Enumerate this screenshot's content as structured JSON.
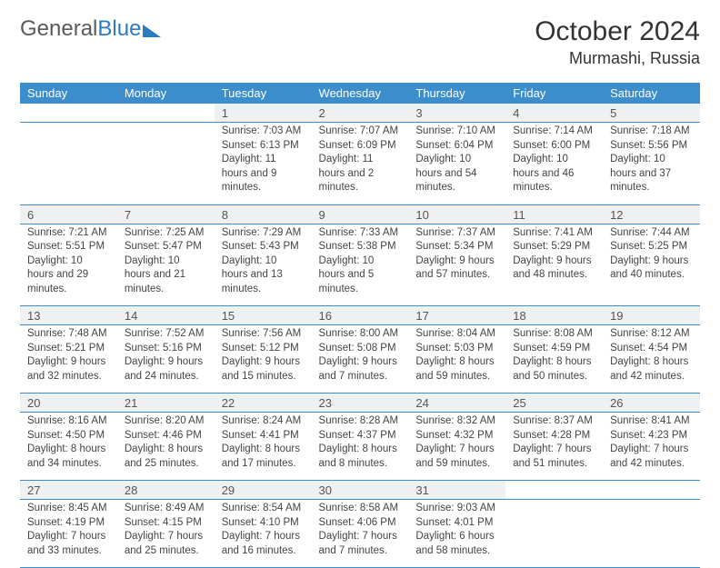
{
  "logo": {
    "word1": "General",
    "word2": "Blue"
  },
  "title": "October 2024",
  "location": "Murmashi, Russia",
  "colors": {
    "header_bg": "#3c8dcc",
    "header_text": "#ffffff",
    "daynum_bg": "#eef0f1",
    "border": "#3c8dcc",
    "body_text": "#444444",
    "logo_gray": "#5a5a5a",
    "logo_blue": "#2c7abf"
  },
  "day_headers": [
    "Sunday",
    "Monday",
    "Tuesday",
    "Wednesday",
    "Thursday",
    "Friday",
    "Saturday"
  ],
  "weeks": [
    {
      "nums": [
        "",
        "",
        "1",
        "2",
        "3",
        "4",
        "5"
      ],
      "cells": [
        "",
        "",
        "Sunrise: 7:03 AM\nSunset: 6:13 PM\nDaylight: 11 hours and 9 minutes.",
        "Sunrise: 7:07 AM\nSunset: 6:09 PM\nDaylight: 11 hours and 2 minutes.",
        "Sunrise: 7:10 AM\nSunset: 6:04 PM\nDaylight: 10 hours and 54 minutes.",
        "Sunrise: 7:14 AM\nSunset: 6:00 PM\nDaylight: 10 hours and 46 minutes.",
        "Sunrise: 7:18 AM\nSunset: 5:56 PM\nDaylight: 10 hours and 37 minutes."
      ]
    },
    {
      "nums": [
        "6",
        "7",
        "8",
        "9",
        "10",
        "11",
        "12"
      ],
      "cells": [
        "Sunrise: 7:21 AM\nSunset: 5:51 PM\nDaylight: 10 hours and 29 minutes.",
        "Sunrise: 7:25 AM\nSunset: 5:47 PM\nDaylight: 10 hours and 21 minutes.",
        "Sunrise: 7:29 AM\nSunset: 5:43 PM\nDaylight: 10 hours and 13 minutes.",
        "Sunrise: 7:33 AM\nSunset: 5:38 PM\nDaylight: 10 hours and 5 minutes.",
        "Sunrise: 7:37 AM\nSunset: 5:34 PM\nDaylight: 9 hours and 57 minutes.",
        "Sunrise: 7:41 AM\nSunset: 5:29 PM\nDaylight: 9 hours and 48 minutes.",
        "Sunrise: 7:44 AM\nSunset: 5:25 PM\nDaylight: 9 hours and 40 minutes."
      ]
    },
    {
      "nums": [
        "13",
        "14",
        "15",
        "16",
        "17",
        "18",
        "19"
      ],
      "cells": [
        "Sunrise: 7:48 AM\nSunset: 5:21 PM\nDaylight: 9 hours and 32 minutes.",
        "Sunrise: 7:52 AM\nSunset: 5:16 PM\nDaylight: 9 hours and 24 minutes.",
        "Sunrise: 7:56 AM\nSunset: 5:12 PM\nDaylight: 9 hours and 15 minutes.",
        "Sunrise: 8:00 AM\nSunset: 5:08 PM\nDaylight: 9 hours and 7 minutes.",
        "Sunrise: 8:04 AM\nSunset: 5:03 PM\nDaylight: 8 hours and 59 minutes.",
        "Sunrise: 8:08 AM\nSunset: 4:59 PM\nDaylight: 8 hours and 50 minutes.",
        "Sunrise: 8:12 AM\nSunset: 4:54 PM\nDaylight: 8 hours and 42 minutes."
      ]
    },
    {
      "nums": [
        "20",
        "21",
        "22",
        "23",
        "24",
        "25",
        "26"
      ],
      "cells": [
        "Sunrise: 8:16 AM\nSunset: 4:50 PM\nDaylight: 8 hours and 34 minutes.",
        "Sunrise: 8:20 AM\nSunset: 4:46 PM\nDaylight: 8 hours and 25 minutes.",
        "Sunrise: 8:24 AM\nSunset: 4:41 PM\nDaylight: 8 hours and 17 minutes.",
        "Sunrise: 8:28 AM\nSunset: 4:37 PM\nDaylight: 8 hours and 8 minutes.",
        "Sunrise: 8:32 AM\nSunset: 4:32 PM\nDaylight: 7 hours and 59 minutes.",
        "Sunrise: 8:37 AM\nSunset: 4:28 PM\nDaylight: 7 hours and 51 minutes.",
        "Sunrise: 8:41 AM\nSunset: 4:23 PM\nDaylight: 7 hours and 42 minutes."
      ]
    },
    {
      "nums": [
        "27",
        "28",
        "29",
        "30",
        "31",
        "",
        ""
      ],
      "cells": [
        "Sunrise: 8:45 AM\nSunset: 4:19 PM\nDaylight: 7 hours and 33 minutes.",
        "Sunrise: 8:49 AM\nSunset: 4:15 PM\nDaylight: 7 hours and 25 minutes.",
        "Sunrise: 8:54 AM\nSunset: 4:10 PM\nDaylight: 7 hours and 16 minutes.",
        "Sunrise: 8:58 AM\nSunset: 4:06 PM\nDaylight: 7 hours and 7 minutes.",
        "Sunrise: 9:03 AM\nSunset: 4:01 PM\nDaylight: 6 hours and 58 minutes.",
        "",
        ""
      ]
    }
  ]
}
